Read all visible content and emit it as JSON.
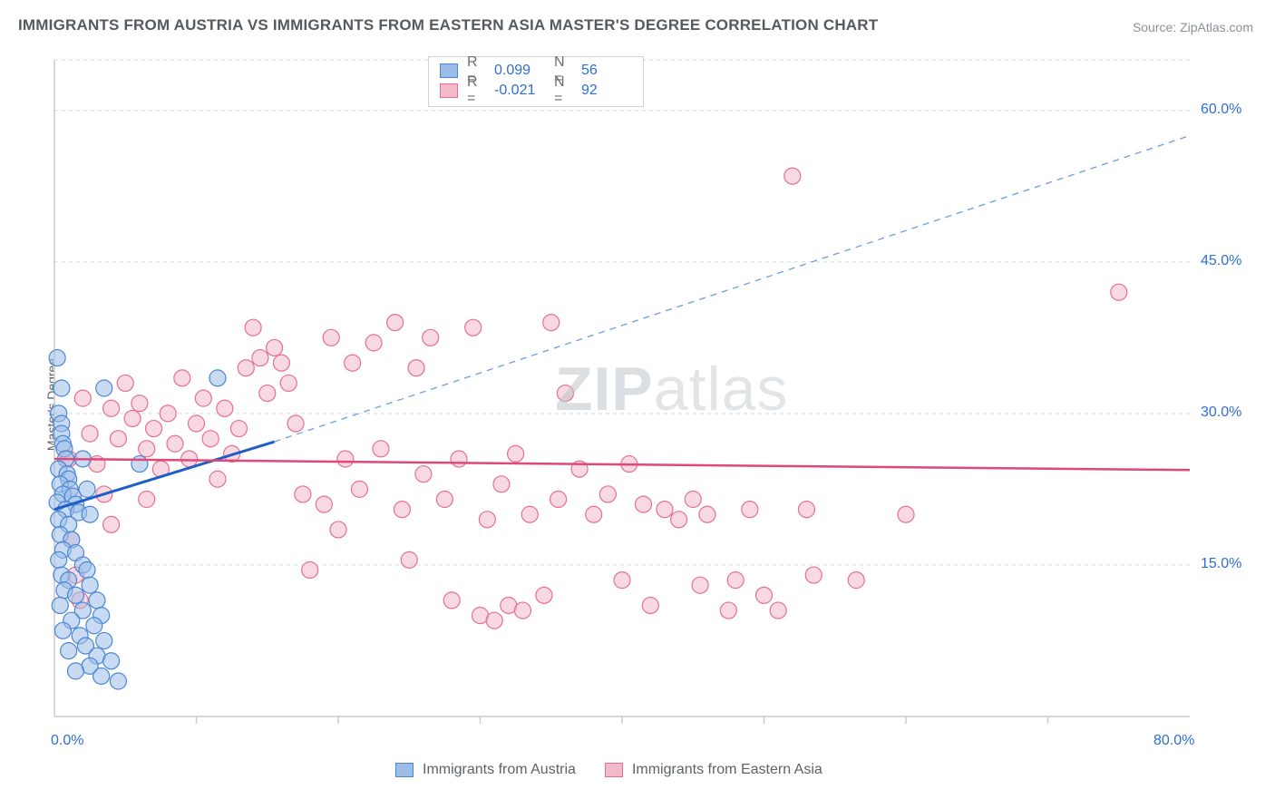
{
  "title": "IMMIGRANTS FROM AUSTRIA VS IMMIGRANTS FROM EASTERN ASIA MASTER'S DEGREE CORRELATION CHART",
  "source_prefix": "Source: ",
  "source_name": "ZipAtlas.com",
  "ylabel": "Master's Degree",
  "watermark_zip": "ZIP",
  "watermark_rest": "atlas",
  "chart": {
    "type": "scatter",
    "xlim": [
      0,
      80
    ],
    "ylim": [
      0,
      65
    ],
    "x_ticks_minor": [
      10,
      20,
      30,
      40,
      50,
      60,
      70
    ],
    "x_tick_major_labels": [
      {
        "x": 0,
        "label": "0.0%"
      },
      {
        "x": 80,
        "label": "80.0%"
      }
    ],
    "y_gridlines": [
      15,
      30,
      45,
      60,
      65
    ],
    "y_tick_labels": [
      {
        "y": 15,
        "label": "15.0%"
      },
      {
        "y": 30,
        "label": "30.0%"
      },
      {
        "y": 45,
        "label": "45.0%"
      },
      {
        "y": 60,
        "label": "60.0%"
      }
    ],
    "grid_color": "#d7dadd",
    "axis_color": "#c9ccd0",
    "background_color": "#ffffff",
    "marker_radius": 9,
    "series": [
      {
        "name": "Immigrants from Austria",
        "fill": "#9cbde8",
        "fill_opacity": 0.55,
        "stroke": "#4a86d6",
        "points": [
          [
            0.2,
            35.5
          ],
          [
            0.3,
            30.0
          ],
          [
            0.5,
            29.0
          ],
          [
            0.5,
            28.0
          ],
          [
            0.6,
            27.0
          ],
          [
            0.7,
            26.5
          ],
          [
            0.8,
            25.5
          ],
          [
            0.3,
            24.5
          ],
          [
            0.9,
            24.0
          ],
          [
            1.0,
            23.5
          ],
          [
            0.4,
            23.0
          ],
          [
            1.1,
            22.5
          ],
          [
            0.6,
            22.0
          ],
          [
            1.3,
            21.8
          ],
          [
            0.2,
            21.2
          ],
          [
            1.5,
            21.0
          ],
          [
            0.8,
            20.5
          ],
          [
            1.7,
            20.2
          ],
          [
            0.3,
            19.5
          ],
          [
            1.0,
            19.0
          ],
          [
            2.0,
            25.5
          ],
          [
            2.3,
            22.5
          ],
          [
            2.5,
            20.0
          ],
          [
            0.4,
            18.0
          ],
          [
            1.2,
            17.5
          ],
          [
            0.6,
            16.5
          ],
          [
            1.5,
            16.2
          ],
          [
            0.3,
            15.5
          ],
          [
            2.0,
            15.0
          ],
          [
            2.3,
            14.5
          ],
          [
            0.5,
            14.0
          ],
          [
            1.0,
            13.5
          ],
          [
            2.5,
            13.0
          ],
          [
            0.7,
            12.5
          ],
          [
            1.5,
            12.0
          ],
          [
            3.0,
            11.5
          ],
          [
            0.4,
            11.0
          ],
          [
            2.0,
            10.5
          ],
          [
            3.3,
            10.0
          ],
          [
            1.2,
            9.5
          ],
          [
            2.8,
            9.0
          ],
          [
            0.6,
            8.5
          ],
          [
            1.8,
            8.0
          ],
          [
            3.5,
            7.5
          ],
          [
            2.2,
            7.0
          ],
          [
            1.0,
            6.5
          ],
          [
            3.0,
            6.0
          ],
          [
            4.0,
            5.5
          ],
          [
            2.5,
            5.0
          ],
          [
            1.5,
            4.5
          ],
          [
            3.3,
            4.0
          ],
          [
            4.5,
            3.5
          ],
          [
            0.5,
            32.5
          ],
          [
            3.5,
            32.5
          ],
          [
            11.5,
            33.5
          ],
          [
            6.0,
            25.0
          ]
        ],
        "fitline": {
          "x1": 0,
          "y1": 20.5,
          "x2": 15.5,
          "y2": 27.2,
          "stroke": "#1f5fc4",
          "width": 3
        },
        "extrapolation": {
          "x1": 15.5,
          "y1": 27.2,
          "x2": 80,
          "y2": 57.5,
          "stroke": "#6b9de0",
          "dash": "7,6",
          "width": 1.3
        }
      },
      {
        "name": "Immigrants from Eastern Asia",
        "fill": "#f4b9c8",
        "fill_opacity": 0.55,
        "stroke": "#e56f93",
        "points": [
          [
            1.0,
            25.5
          ],
          [
            1.2,
            17.5
          ],
          [
            1.5,
            14.0
          ],
          [
            1.8,
            11.5
          ],
          [
            2.0,
            31.5
          ],
          [
            2.5,
            28.0
          ],
          [
            3.0,
            25.0
          ],
          [
            3.5,
            22.0
          ],
          [
            4.0,
            30.5
          ],
          [
            4.5,
            27.5
          ],
          [
            5.0,
            33.0
          ],
          [
            5.5,
            29.5
          ],
          [
            6.0,
            31.0
          ],
          [
            6.5,
            26.5
          ],
          [
            7.0,
            28.5
          ],
          [
            7.5,
            24.5
          ],
          [
            8.0,
            30.0
          ],
          [
            8.5,
            27.0
          ],
          [
            9.0,
            33.5
          ],
          [
            9.5,
            25.5
          ],
          [
            10.0,
            29.0
          ],
          [
            10.5,
            31.5
          ],
          [
            11.0,
            27.5
          ],
          [
            11.5,
            23.5
          ],
          [
            12.0,
            30.5
          ],
          [
            12.5,
            26.0
          ],
          [
            13.0,
            28.5
          ],
          [
            13.5,
            34.5
          ],
          [
            14.0,
            38.5
          ],
          [
            14.5,
            35.5
          ],
          [
            15.0,
            32.0
          ],
          [
            15.5,
            36.5
          ],
          [
            16.0,
            35.0
          ],
          [
            16.5,
            33.0
          ],
          [
            17.0,
            29.0
          ],
          [
            17.5,
            22.0
          ],
          [
            18.0,
            14.5
          ],
          [
            19.0,
            21.0
          ],
          [
            19.5,
            37.5
          ],
          [
            20.0,
            18.5
          ],
          [
            20.5,
            25.5
          ],
          [
            21.0,
            35.0
          ],
          [
            21.5,
            22.5
          ],
          [
            22.5,
            37.0
          ],
          [
            23.0,
            26.5
          ],
          [
            24.0,
            39.0
          ],
          [
            24.5,
            20.5
          ],
          [
            25.0,
            15.5
          ],
          [
            25.5,
            34.5
          ],
          [
            26.0,
            24.0
          ],
          [
            26.5,
            37.5
          ],
          [
            27.5,
            21.5
          ],
          [
            28.0,
            11.5
          ],
          [
            28.5,
            25.5
          ],
          [
            29.5,
            38.5
          ],
          [
            30.0,
            10.0
          ],
          [
            30.5,
            19.5
          ],
          [
            31.0,
            9.5
          ],
          [
            31.5,
            23.0
          ],
          [
            32.0,
            11.0
          ],
          [
            32.5,
            26.0
          ],
          [
            33.0,
            10.5
          ],
          [
            33.5,
            20.0
          ],
          [
            34.5,
            12.0
          ],
          [
            35.0,
            39.0
          ],
          [
            35.5,
            21.5
          ],
          [
            36.0,
            32.0
          ],
          [
            37.0,
            24.5
          ],
          [
            38.0,
            20.0
          ],
          [
            39.0,
            22.0
          ],
          [
            40.0,
            13.5
          ],
          [
            40.5,
            25.0
          ],
          [
            41.5,
            21.0
          ],
          [
            42.0,
            11.0
          ],
          [
            43.0,
            20.5
          ],
          [
            44.0,
            19.5
          ],
          [
            45.0,
            21.5
          ],
          [
            45.5,
            13.0
          ],
          [
            46.0,
            20.0
          ],
          [
            47.5,
            10.5
          ],
          [
            48.0,
            13.5
          ],
          [
            49.0,
            20.5
          ],
          [
            50.0,
            12.0
          ],
          [
            51.0,
            10.5
          ],
          [
            52.0,
            53.5
          ],
          [
            53.0,
            20.5
          ],
          [
            53.5,
            14.0
          ],
          [
            56.5,
            13.5
          ],
          [
            60.0,
            20.0
          ],
          [
            75.0,
            42.0
          ],
          [
            4.0,
            19.0
          ],
          [
            6.5,
            21.5
          ]
        ],
        "fitline": {
          "x1": 0,
          "y1": 25.5,
          "x2": 80,
          "y2": 24.4,
          "stroke": "#e0487a",
          "width": 2.5
        }
      }
    ]
  },
  "top_legend": {
    "rows": [
      {
        "swatch_fill": "#9cbde8",
        "swatch_stroke": "#4a86d6",
        "r_label": "R =",
        "r_val": "0.099",
        "n_label": "N =",
        "n_val": "56"
      },
      {
        "swatch_fill": "#f4b9c8",
        "swatch_stroke": "#e56f93",
        "r_label": "R =",
        "r_val": "-0.021",
        "n_label": "N =",
        "n_val": "92"
      }
    ]
  },
  "bottom_legend": {
    "items": [
      {
        "swatch_fill": "#9cbde8",
        "swatch_stroke": "#4a86d6",
        "label": "Immigrants from Austria"
      },
      {
        "swatch_fill": "#f4b9c8",
        "swatch_stroke": "#e56f93",
        "label": "Immigrants from Eastern Asia"
      }
    ]
  }
}
